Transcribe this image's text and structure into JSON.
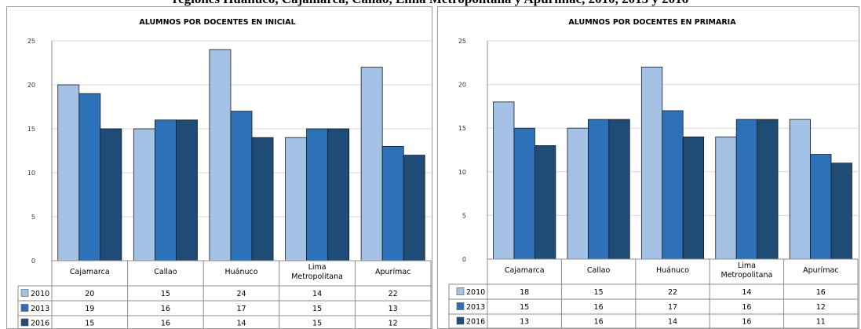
{
  "heading": "regiones Huánuco, Cajamarca, Callao, Lima Metropolitana y Apurímac, 2010, 2013 y 2016",
  "colors": {
    "2010": "#a4c2e6",
    "2013": "#2d72b8",
    "2016": "#1f4b77",
    "grid": "#d9d9d9",
    "axis": "#8c8c8c",
    "bar_edge": "#1a1a1a"
  },
  "chart_data": [
    {
      "type": "bar",
      "title": "ALUMNOS POR DOCENTES EN INICIAL",
      "categories": [
        "Cajamarca",
        "Callao",
        "Huánuco",
        "Lima Metropolitana",
        "Apurímac"
      ],
      "series": [
        {
          "name": "2010",
          "values": [
            20,
            15,
            24,
            14,
            22
          ]
        },
        {
          "name": "2013",
          "values": [
            19,
            16,
            17,
            15,
            13
          ]
        },
        {
          "name": "2016",
          "values": [
            15,
            16,
            14,
            15,
            12
          ]
        }
      ],
      "ylim": [
        0,
        25
      ],
      "yticks": [
        0,
        5,
        10,
        15,
        20,
        25
      ],
      "grid": true,
      "legend": "data-table"
    },
    {
      "type": "bar",
      "title": "ALUMNOS POR DOCENTES EN PRIMARIA",
      "categories": [
        "Cajamarca",
        "Callao",
        "Huánuco",
        "Lima Metropolitana",
        "Apurímac"
      ],
      "series": [
        {
          "name": "2010",
          "values": [
            18,
            15,
            22,
            14,
            16
          ]
        },
        {
          "name": "2013",
          "values": [
            15,
            16,
            17,
            16,
            12
          ]
        },
        {
          "name": "2016",
          "values": [
            13,
            16,
            14,
            16,
            11
          ]
        }
      ],
      "ylim": [
        0,
        25
      ],
      "yticks": [
        0,
        5,
        10,
        15,
        20,
        25
      ],
      "grid": true,
      "legend": "data-table"
    }
  ]
}
